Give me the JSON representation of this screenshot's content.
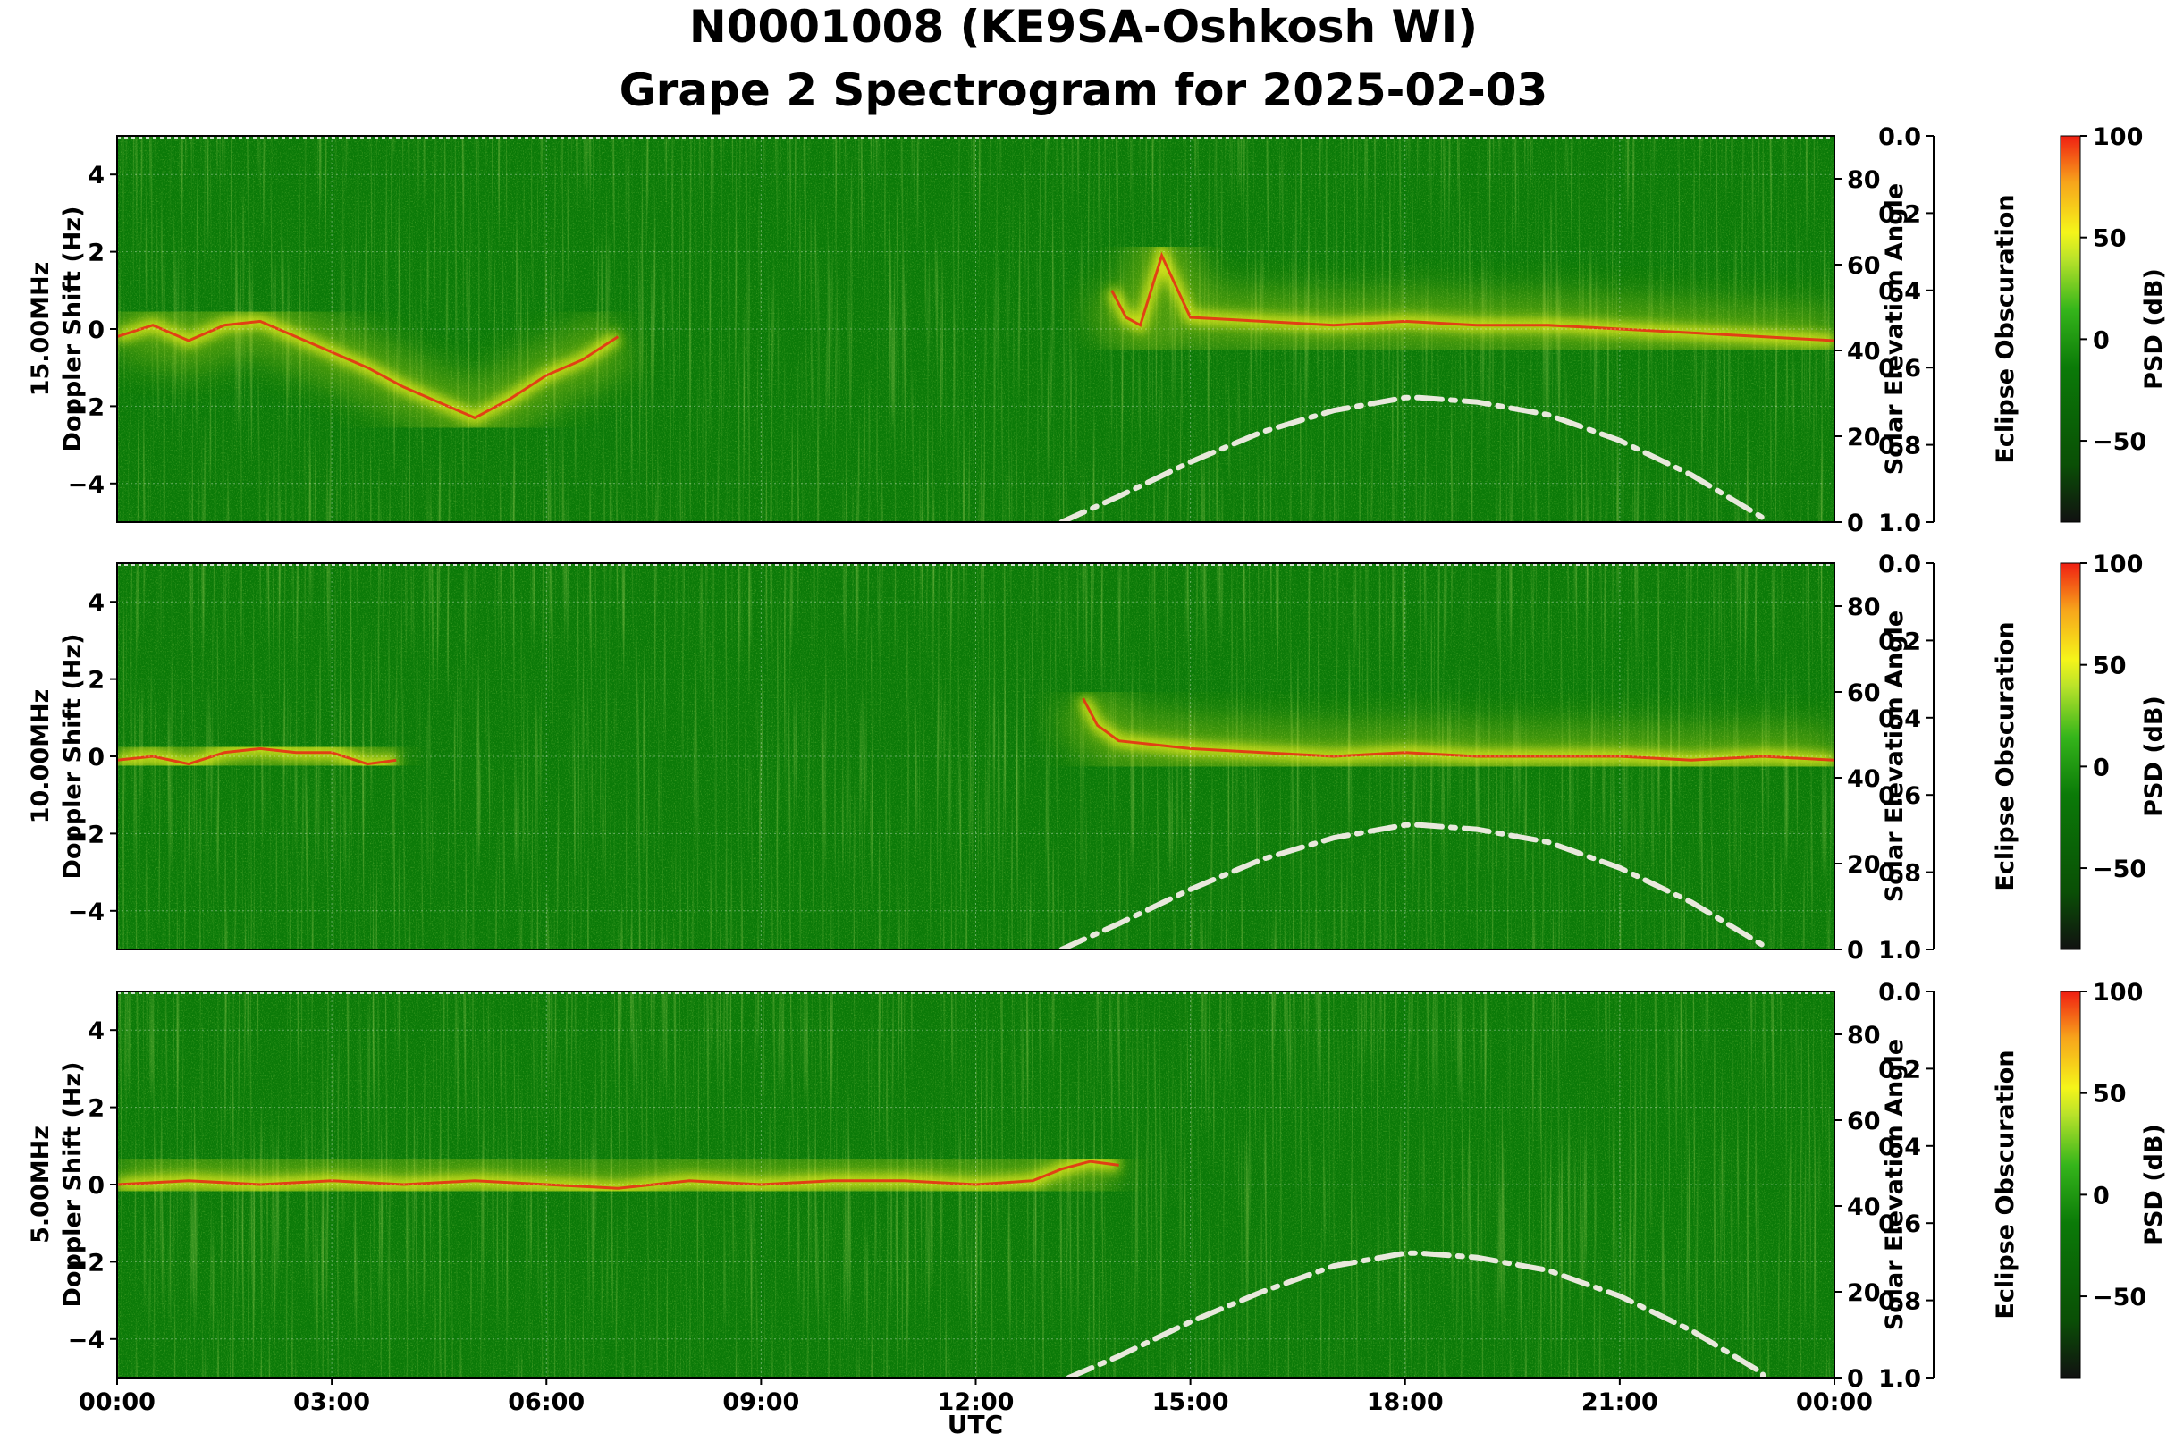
{
  "figure": {
    "title_line1": "N0001008 (KE9SA-Oshkosh WI)",
    "title_line2": "Grape 2 Spectrogram for 2025-02-03",
    "xlabel": "UTC"
  },
  "colors": {
    "background_green": "#0b7a08",
    "signal_yellow": "#f2f21c",
    "trace_red": "#e53015",
    "solar_curve": "#e8e8dc",
    "colorbar": [
      "#111111",
      "#0a4f06",
      "#0b7a08",
      "#35b51b",
      "#b8e22a",
      "#f5f51a",
      "#f7a41b",
      "#f01f12"
    ]
  },
  "chart_data": [
    {
      "type": "heatmap",
      "frequency_label": "15.00MHz",
      "ylabel": "Doppler Shift (Hz)",
      "ylim": [
        -5,
        5
      ],
      "yticks": [
        "4",
        "2",
        "0",
        "−2",
        "−4"
      ],
      "xlim": [
        "00:00",
        "24:00"
      ],
      "xticks": [
        "00:00",
        "03:00",
        "06:00",
        "09:00",
        "12:00",
        "15:00",
        "18:00",
        "21:00",
        "00:00"
      ],
      "grid": true,
      "right_axis": {
        "label": "Solar Elevation Angle",
        "ylim": [
          0,
          90
        ],
        "ticks": [
          "0",
          "20",
          "40",
          "60",
          "80"
        ]
      },
      "eclipse_axis": {
        "label": "Eclipse Obscuration",
        "ylim": [
          0.0,
          1.0
        ],
        "inverted": true,
        "ticks": [
          "0.0",
          "0.2",
          "0.4",
          "0.6",
          "0.8",
          "1.0"
        ]
      },
      "colorbar": {
        "label": "PSD (dB)",
        "range": [
          -90,
          100
        ],
        "ticks": [
          "100",
          "50",
          "0",
          "−50"
        ]
      },
      "solar_elevation": {
        "hours": [
          13.2,
          14,
          15,
          16,
          17,
          18,
          18.2,
          19,
          20,
          21,
          22,
          23,
          23.0
        ],
        "degrees": [
          0,
          6,
          14,
          21,
          26,
          29,
          29,
          28,
          25,
          19,
          11,
          1,
          0
        ]
      },
      "doppler_trace": {
        "hours": [
          0,
          0.5,
          1,
          1.5,
          2,
          2.5,
          3,
          3.5,
          4,
          4.5,
          5,
          5.5,
          6,
          6.5,
          7,
          13.9,
          14.1,
          14.3,
          14.6,
          15,
          16,
          17,
          18,
          19,
          20,
          21,
          22,
          23,
          24
        ],
        "hz": [
          -0.2,
          0.1,
          -0.3,
          0.1,
          0.2,
          -0.2,
          -0.6,
          -1.0,
          -1.5,
          -1.9,
          -2.3,
          -1.8,
          -1.2,
          -0.8,
          -0.2,
          1.0,
          0.3,
          0.1,
          1.9,
          0.3,
          0.2,
          0.1,
          0.2,
          0.1,
          0.1,
          0.0,
          -0.1,
          -0.2,
          -0.3
        ]
      }
    },
    {
      "type": "heatmap",
      "frequency_label": "10.00MHz",
      "ylabel": "Doppler Shift (Hz)",
      "ylim": [
        -5,
        5
      ],
      "yticks": [
        "4",
        "2",
        "0",
        "−2",
        "−4"
      ],
      "xlim": [
        "00:00",
        "24:00"
      ],
      "xticks": [
        "00:00",
        "03:00",
        "06:00",
        "09:00",
        "12:00",
        "15:00",
        "18:00",
        "21:00",
        "00:00"
      ],
      "grid": true,
      "right_axis": {
        "label": "Solar Elevation Angle",
        "ylim": [
          0,
          90
        ],
        "ticks": [
          "0",
          "20",
          "40",
          "60",
          "80"
        ]
      },
      "eclipse_axis": {
        "label": "Eclipse Obscuration",
        "ylim": [
          0.0,
          1.0
        ],
        "inverted": true,
        "ticks": [
          "0.0",
          "0.2",
          "0.4",
          "0.6",
          "0.8",
          "1.0"
        ]
      },
      "colorbar": {
        "label": "PSD (dB)",
        "range": [
          -90,
          100
        ],
        "ticks": [
          "100",
          "50",
          "0",
          "−50"
        ]
      },
      "solar_elevation": {
        "hours": [
          13.2,
          14,
          15,
          16,
          17,
          18,
          18.2,
          19,
          20,
          21,
          22,
          23,
          23.0
        ],
        "degrees": [
          0,
          6,
          14,
          21,
          26,
          29,
          29,
          28,
          25,
          19,
          11,
          1,
          0
        ]
      },
      "doppler_trace": {
        "hours": [
          0,
          0.5,
          1,
          1.5,
          2,
          2.5,
          3,
          3.5,
          3.9,
          13.5,
          13.7,
          14,
          14.5,
          15,
          16,
          17,
          18,
          19,
          20,
          21,
          22,
          23,
          24
        ],
        "hz": [
          -0.1,
          0.0,
          -0.2,
          0.1,
          0.2,
          0.1,
          0.1,
          -0.2,
          -0.1,
          1.5,
          0.8,
          0.4,
          0.3,
          0.2,
          0.1,
          0.0,
          0.1,
          0.0,
          0.0,
          0.0,
          -0.1,
          0.0,
          -0.1
        ]
      }
    },
    {
      "type": "heatmap",
      "frequency_label": "5.00MHz",
      "ylabel": "Doppler Shift (Hz)",
      "ylim": [
        -5,
        5
      ],
      "yticks": [
        "4",
        "2",
        "0",
        "−2",
        "−4"
      ],
      "xlim": [
        "00:00",
        "24:00"
      ],
      "xticks": [
        "00:00",
        "03:00",
        "06:00",
        "09:00",
        "12:00",
        "15:00",
        "18:00",
        "21:00",
        "00:00"
      ],
      "grid": true,
      "right_axis": {
        "label": "Solar Elevation Angle",
        "ylim": [
          0,
          90
        ],
        "ticks": [
          "0",
          "20",
          "40",
          "60",
          "80"
        ]
      },
      "eclipse_axis": {
        "label": "Eclipse Obscuration",
        "ylim": [
          0.0,
          1.0
        ],
        "inverted": true,
        "ticks": [
          "0.0",
          "0.2",
          "0.4",
          "0.6",
          "0.8",
          "1.0"
        ]
      },
      "colorbar": {
        "label": "PSD (dB)",
        "range": [
          -90,
          100
        ],
        "ticks": [
          "100",
          "50",
          "0",
          "−50"
        ]
      },
      "solar_elevation": {
        "hours": [
          13.3,
          14,
          15,
          16,
          17,
          18,
          18.2,
          19,
          20,
          21,
          22,
          23,
          23.0
        ],
        "degrees": [
          0,
          5,
          13,
          20,
          26,
          29,
          29,
          28,
          25,
          19,
          11,
          1,
          0
        ]
      },
      "doppler_trace": {
        "hours": [
          0,
          1,
          2,
          3,
          4,
          5,
          6,
          7,
          8,
          9,
          10,
          11,
          12,
          12.8,
          13.2,
          13.6,
          14
        ],
        "hz": [
          0.0,
          0.1,
          0.0,
          0.1,
          0.0,
          0.1,
          0.0,
          -0.1,
          0.1,
          0.0,
          0.1,
          0.1,
          0.0,
          0.1,
          0.4,
          0.6,
          0.5
        ]
      }
    }
  ]
}
